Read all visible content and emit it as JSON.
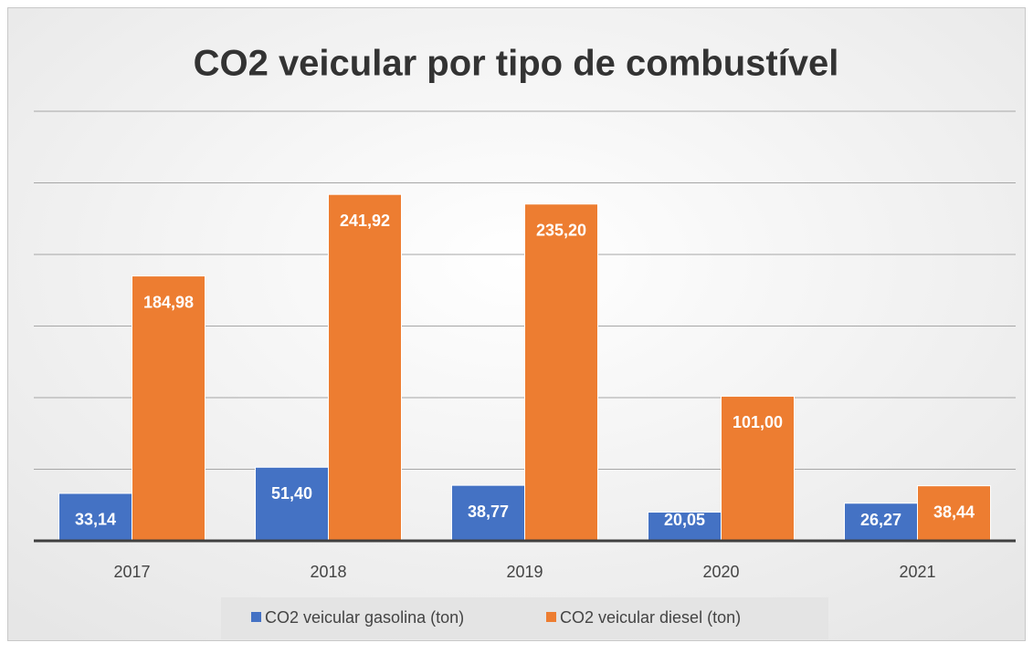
{
  "chart_data": {
    "type": "bar",
    "title": "CO2 veicular por tipo de combustível",
    "categories": [
      "2017",
      "2018",
      "2019",
      "2020",
      "2021"
    ],
    "series": [
      {
        "name": "CO2 veicular gasolina (ton)",
        "color": "#4472c4",
        "values": [
          33.14,
          51.4,
          38.77,
          20.05,
          26.27
        ],
        "value_labels": [
          "33,14",
          "51,40",
          "38,77",
          "20,05",
          "26,27"
        ]
      },
      {
        "name": "CO2 veicular diesel (ton)",
        "color": "#ed7d31",
        "values": [
          184.98,
          241.92,
          235.2,
          101.0,
          38.44
        ],
        "value_labels": [
          "184,98",
          "241,92",
          "235,20",
          "101,00",
          "38,44"
        ]
      }
    ],
    "ylim": [
      0,
      300
    ],
    "yticks": [
      0,
      50,
      100,
      150,
      200,
      250,
      300
    ],
    "grid": true,
    "legend": "bottom"
  }
}
